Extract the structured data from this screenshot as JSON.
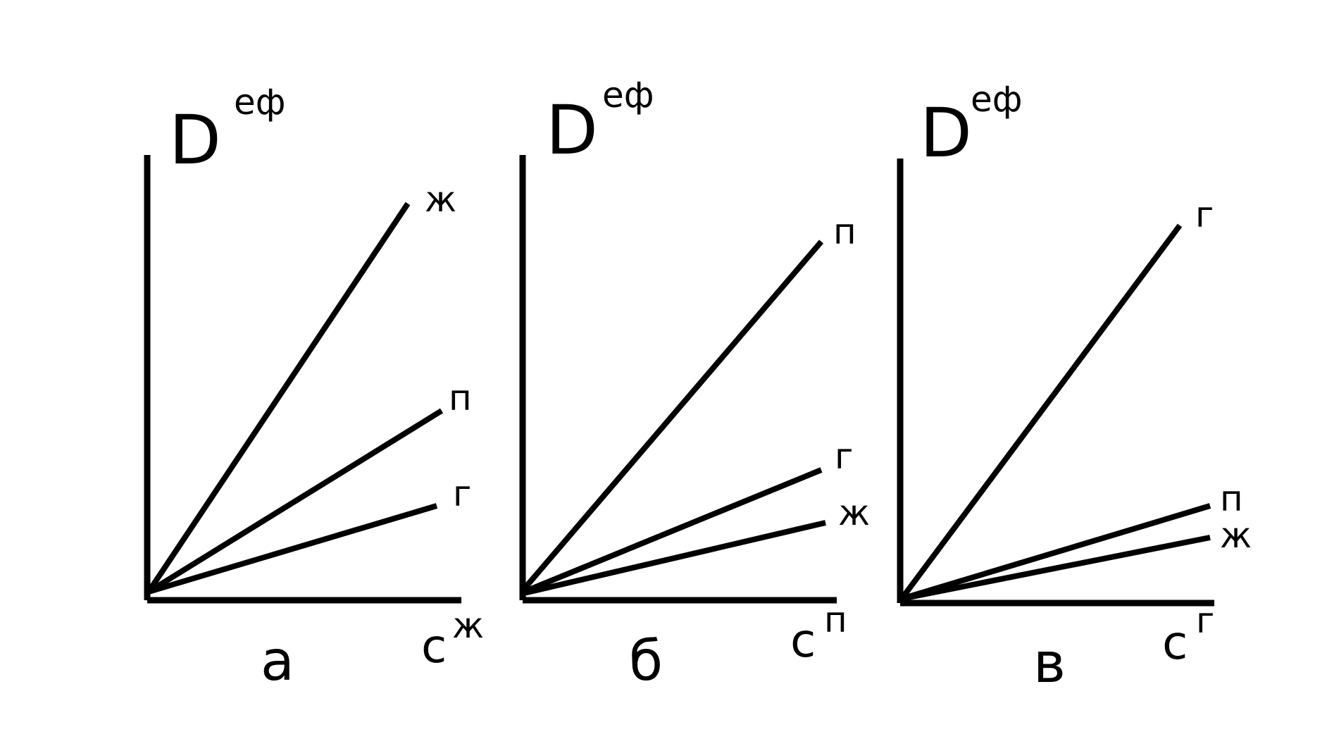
{
  "colors": {
    "ink": "#000000",
    "background": "#ffffff"
  },
  "panels": [
    {
      "letter": "а",
      "y_label": {
        "base": "D",
        "sup": "еф"
      },
      "x_label": {
        "base": "с",
        "sup": "ж"
      },
      "lines": [
        {
          "label": "ж"
        },
        {
          "label": "п"
        },
        {
          "label": "г"
        }
      ]
    },
    {
      "letter": "б",
      "y_label": {
        "base": "D",
        "sup": "еф"
      },
      "x_label": {
        "base": "с",
        "sup": "п"
      },
      "lines": [
        {
          "label": "п"
        },
        {
          "label": "г"
        },
        {
          "label": "ж"
        }
      ]
    },
    {
      "letter": "в",
      "y_label": {
        "base": "D",
        "sup": "еф"
      },
      "x_label": {
        "base": "с",
        "sup": "г"
      },
      "lines": [
        {
          "label": "г"
        },
        {
          "label": "п"
        },
        {
          "label": "ж"
        }
      ]
    }
  ]
}
